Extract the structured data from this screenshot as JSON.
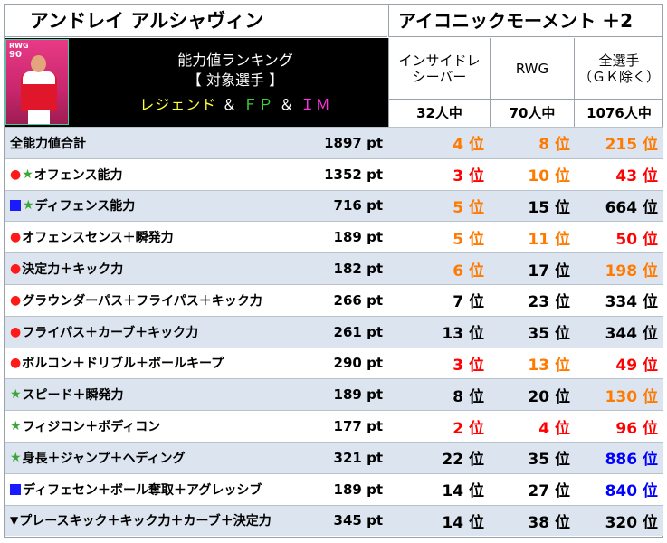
{
  "header": {
    "player_name": "アンドレイ アルシャヴィン",
    "card_type": "アイコニックモーメント ＋2"
  },
  "banner": {
    "card_position": "RWG",
    "card_rating": "90",
    "line1": "能力値ランキング",
    "line2": "【 対象選手 】",
    "legend": "レジェンド",
    "amp1": "＆",
    "fp": "ＦＰ",
    "amp2": "＆",
    "im": "ＩＭ"
  },
  "columns": [
    {
      "label": "インサイドレ\nシーバー",
      "count": "32人中"
    },
    {
      "label": "RWG",
      "count": "70人中"
    },
    {
      "label": "全選手\n（ＧＫ除く）",
      "count": "1076人中"
    }
  ],
  "colors": {
    "orange": "#ff7a00",
    "red": "#ff0000",
    "blue": "#0000ff",
    "black": "#000000",
    "star": "#3aa63a",
    "circle": "#ff1a1a",
    "square": "#1a1aff"
  },
  "rows": [
    {
      "marks": [],
      "label": "全能力値合計",
      "pts": "1897 pt",
      "r1": "4 位",
      "r1c": "orange",
      "r2": "8 位",
      "r2c": "orange",
      "r3": "215 位",
      "r3c": "orange"
    },
    {
      "marks": [
        "circle",
        "star"
      ],
      "label": "オフェンス能力",
      "pts": "1352 pt",
      "r1": "3 位",
      "r1c": "red",
      "r2": "10 位",
      "r2c": "orange",
      "r3": "43 位",
      "r3c": "red"
    },
    {
      "marks": [
        "square",
        "star"
      ],
      "label": "ディフェンス能力",
      "pts": "716 pt",
      "r1": "5 位",
      "r1c": "orange",
      "r2": "15 位",
      "r2c": "black",
      "r3": "664 位",
      "r3c": "black"
    },
    {
      "marks": [
        "circle"
      ],
      "label": "オフェンスセンス＋瞬発力",
      "pts": "189 pt",
      "r1": "5 位",
      "r1c": "orange",
      "r2": "11 位",
      "r2c": "orange",
      "r3": "50 位",
      "r3c": "red"
    },
    {
      "marks": [
        "circle"
      ],
      "label": "決定力＋キック力",
      "pts": "182 pt",
      "r1": "6 位",
      "r1c": "orange",
      "r2": "17 位",
      "r2c": "black",
      "r3": "198 位",
      "r3c": "orange"
    },
    {
      "marks": [
        "circle"
      ],
      "label": "グラウンダーパス＋フライパス＋キック力",
      "pts": "266 pt",
      "r1": "7 位",
      "r1c": "black",
      "r2": "23 位",
      "r2c": "black",
      "r3": "334 位",
      "r3c": "black"
    },
    {
      "marks": [
        "circle"
      ],
      "label": "フライパス＋カーブ＋キック力",
      "pts": "261 pt",
      "r1": "13 位",
      "r1c": "black",
      "r2": "35 位",
      "r2c": "black",
      "r3": "344 位",
      "r3c": "black"
    },
    {
      "marks": [
        "circle"
      ],
      "label": "ボルコン＋ドリブル＋ボールキープ",
      "pts": "290 pt",
      "r1": "3 位",
      "r1c": "red",
      "r2": "13 位",
      "r2c": "orange",
      "r3": "49 位",
      "r3c": "red"
    },
    {
      "marks": [
        "star"
      ],
      "label": "スピード＋瞬発力",
      "pts": "189 pt",
      "r1": "8 位",
      "r1c": "black",
      "r2": "20 位",
      "r2c": "black",
      "r3": "130 位",
      "r3c": "orange"
    },
    {
      "marks": [
        "star"
      ],
      "label": "フィジコン＋ボディコン",
      "pts": "177 pt",
      "r1": "2 位",
      "r1c": "red",
      "r2": "4 位",
      "r2c": "red",
      "r3": "96 位",
      "r3c": "red"
    },
    {
      "marks": [
        "star"
      ],
      "label": "身長＋ジャンプ＋ヘディング",
      "pts": "321 pt",
      "r1": "22 位",
      "r1c": "black",
      "r2": "35 位",
      "r2c": "black",
      "r3": "886 位",
      "r3c": "blue"
    },
    {
      "marks": [
        "square"
      ],
      "label": "ディフェセン＋ボール奪取＋アグレッシブ",
      "pts": "189 pt",
      "r1": "14 位",
      "r1c": "black",
      "r2": "27 位",
      "r2c": "black",
      "r3": "840 位",
      "r3c": "blue"
    },
    {
      "marks": [
        "triangle"
      ],
      "label": "プレースキック＋キック力＋カーブ＋決定力",
      "pts": "345 pt",
      "r1": "14 位",
      "r1c": "black",
      "r2": "38 位",
      "r2c": "black",
      "r3": "320 位",
      "r3c": "black"
    }
  ]
}
